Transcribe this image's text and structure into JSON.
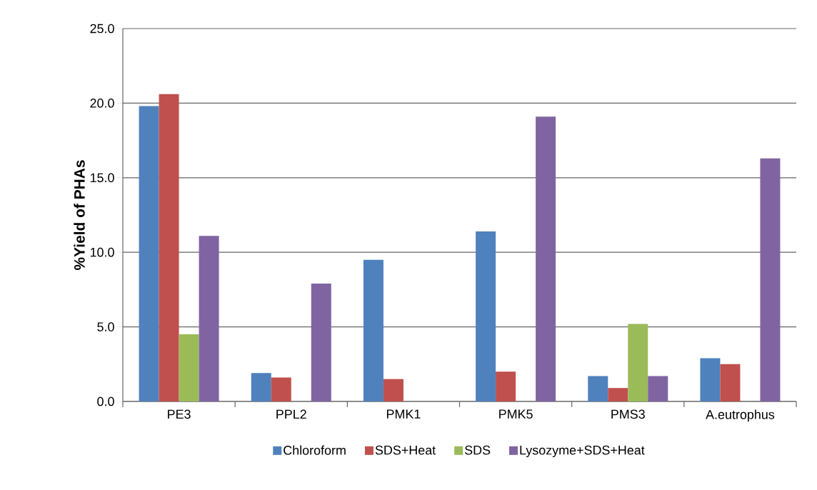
{
  "chart_data": {
    "type": "bar",
    "ylabel": "%Yield of PHAs",
    "categories": [
      "PE3",
      "PPL2",
      "PMK1",
      "PMK5",
      "PMS3",
      "A.eutrophus"
    ],
    "series": [
      {
        "name": "Chloroform",
        "color": "#4f81bd",
        "values": [
          19.8,
          1.9,
          9.5,
          11.4,
          1.7,
          2.9
        ]
      },
      {
        "name": "SDS+Heat",
        "color": "#c0504d",
        "values": [
          20.6,
          1.6,
          1.5,
          2.0,
          0.9,
          2.5
        ]
      },
      {
        "name": "SDS",
        "color": "#9bbb59",
        "values": [
          4.5,
          null,
          null,
          null,
          5.2,
          null
        ]
      },
      {
        "name": "Lysozyme+SDS+Heat",
        "color": "#8064a2",
        "values": [
          11.1,
          7.9,
          null,
          19.1,
          1.7,
          16.3
        ]
      }
    ],
    "ylim": [
      0,
      25
    ],
    "yticks": [
      {
        "value": 0,
        "label": "0.0"
      },
      {
        "value": 5,
        "label": "5.0"
      },
      {
        "value": 10,
        "label": "10.0"
      },
      {
        "value": 15,
        "label": "15.0"
      },
      {
        "value": 20,
        "label": "20.0"
      },
      {
        "value": 25,
        "label": "25.0"
      }
    ],
    "grid": "y",
    "legend": "bottom"
  }
}
